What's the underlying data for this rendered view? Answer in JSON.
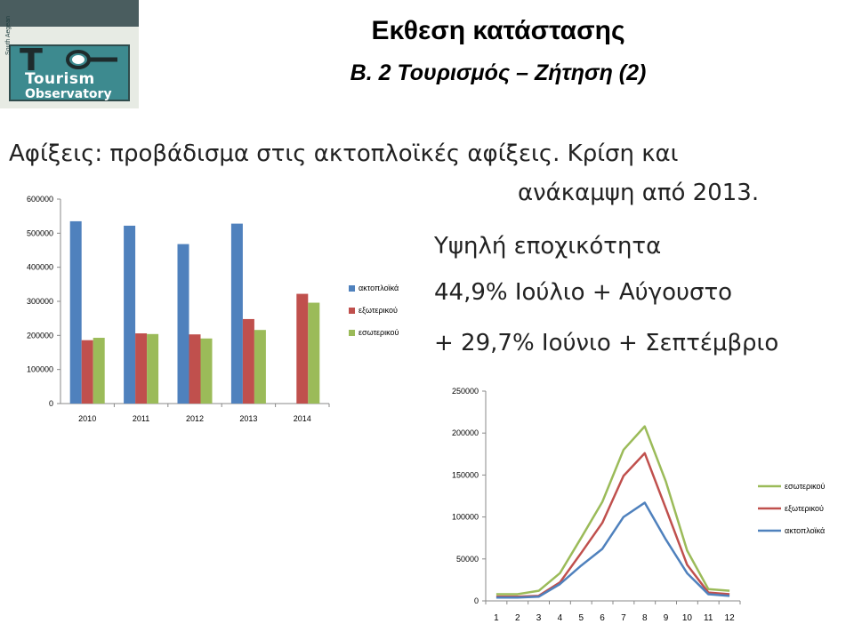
{
  "logo": {
    "name_line1": "Tourism",
    "name_line2": "Observatory",
    "region": "South Aegean"
  },
  "header": {
    "title": "Εκθεση κατάστασης",
    "subtitle": "Β. 2 Τουρισμός – Ζήτηση (2)"
  },
  "body": {
    "line1": "Αφίξεις: προβάδισμα στις ακτοπλοϊκές αφίξεις. Κρίση και",
    "line2": "ανάκαμψη από 2013.",
    "line3": "Υψηλή εποχικότητα",
    "line4": "44,9% Ιούλιο + Αύγουστο",
    "line5": "+ 29,7% Ιούνιο + Σεπτέμβριο"
  },
  "colors": {
    "blue": "#4f81bd",
    "red": "#c0504d",
    "green": "#9bbb59"
  },
  "chart_data": [
    {
      "type": "bar",
      "categories": [
        "2010",
        "2011",
        "2012",
        "2013",
        "2014"
      ],
      "ylim": [
        0,
        600000
      ],
      "yticks": [
        0,
        100000,
        200000,
        300000,
        400000,
        500000,
        600000
      ],
      "legend": "right",
      "grid": false,
      "series": [
        {
          "name": "ακτοπλοϊκά",
          "color": "#4f81bd",
          "values": [
            535000,
            522000,
            468000,
            528000,
            null
          ]
        },
        {
          "name": "εξωτερικού",
          "color": "#c0504d",
          "values": [
            186000,
            206000,
            203000,
            248000,
            322000
          ]
        },
        {
          "name": "εσωτερικού",
          "color": "#9bbb59",
          "values": [
            193000,
            204000,
            191000,
            216000,
            296000
          ]
        }
      ]
    },
    {
      "type": "line",
      "x": [
        1,
        2,
        3,
        4,
        5,
        6,
        7,
        8,
        9,
        10,
        11,
        12
      ],
      "ylim": [
        0,
        250000
      ],
      "yticks": [
        0,
        50000,
        100000,
        150000,
        200000,
        250000
      ],
      "legend": "right",
      "grid": false,
      "series": [
        {
          "name": "εσωτερικού",
          "color": "#9bbb59",
          "values": [
            8000,
            8000,
            12000,
            33000,
            75000,
            118000,
            180000,
            208000,
            142000,
            60000,
            14000,
            12000
          ]
        },
        {
          "name": "εξωτερικού",
          "color": "#c0504d",
          "values": [
            5000,
            5000,
            6000,
            22000,
            57000,
            93000,
            149000,
            176000,
            110000,
            43000,
            10000,
            8000
          ]
        },
        {
          "name": "ακτοπλοϊκά",
          "color": "#4f81bd",
          "values": [
            4000,
            4000,
            5000,
            20000,
            42000,
            62000,
            100000,
            117000,
            73000,
            33000,
            8000,
            6000
          ]
        }
      ]
    }
  ]
}
